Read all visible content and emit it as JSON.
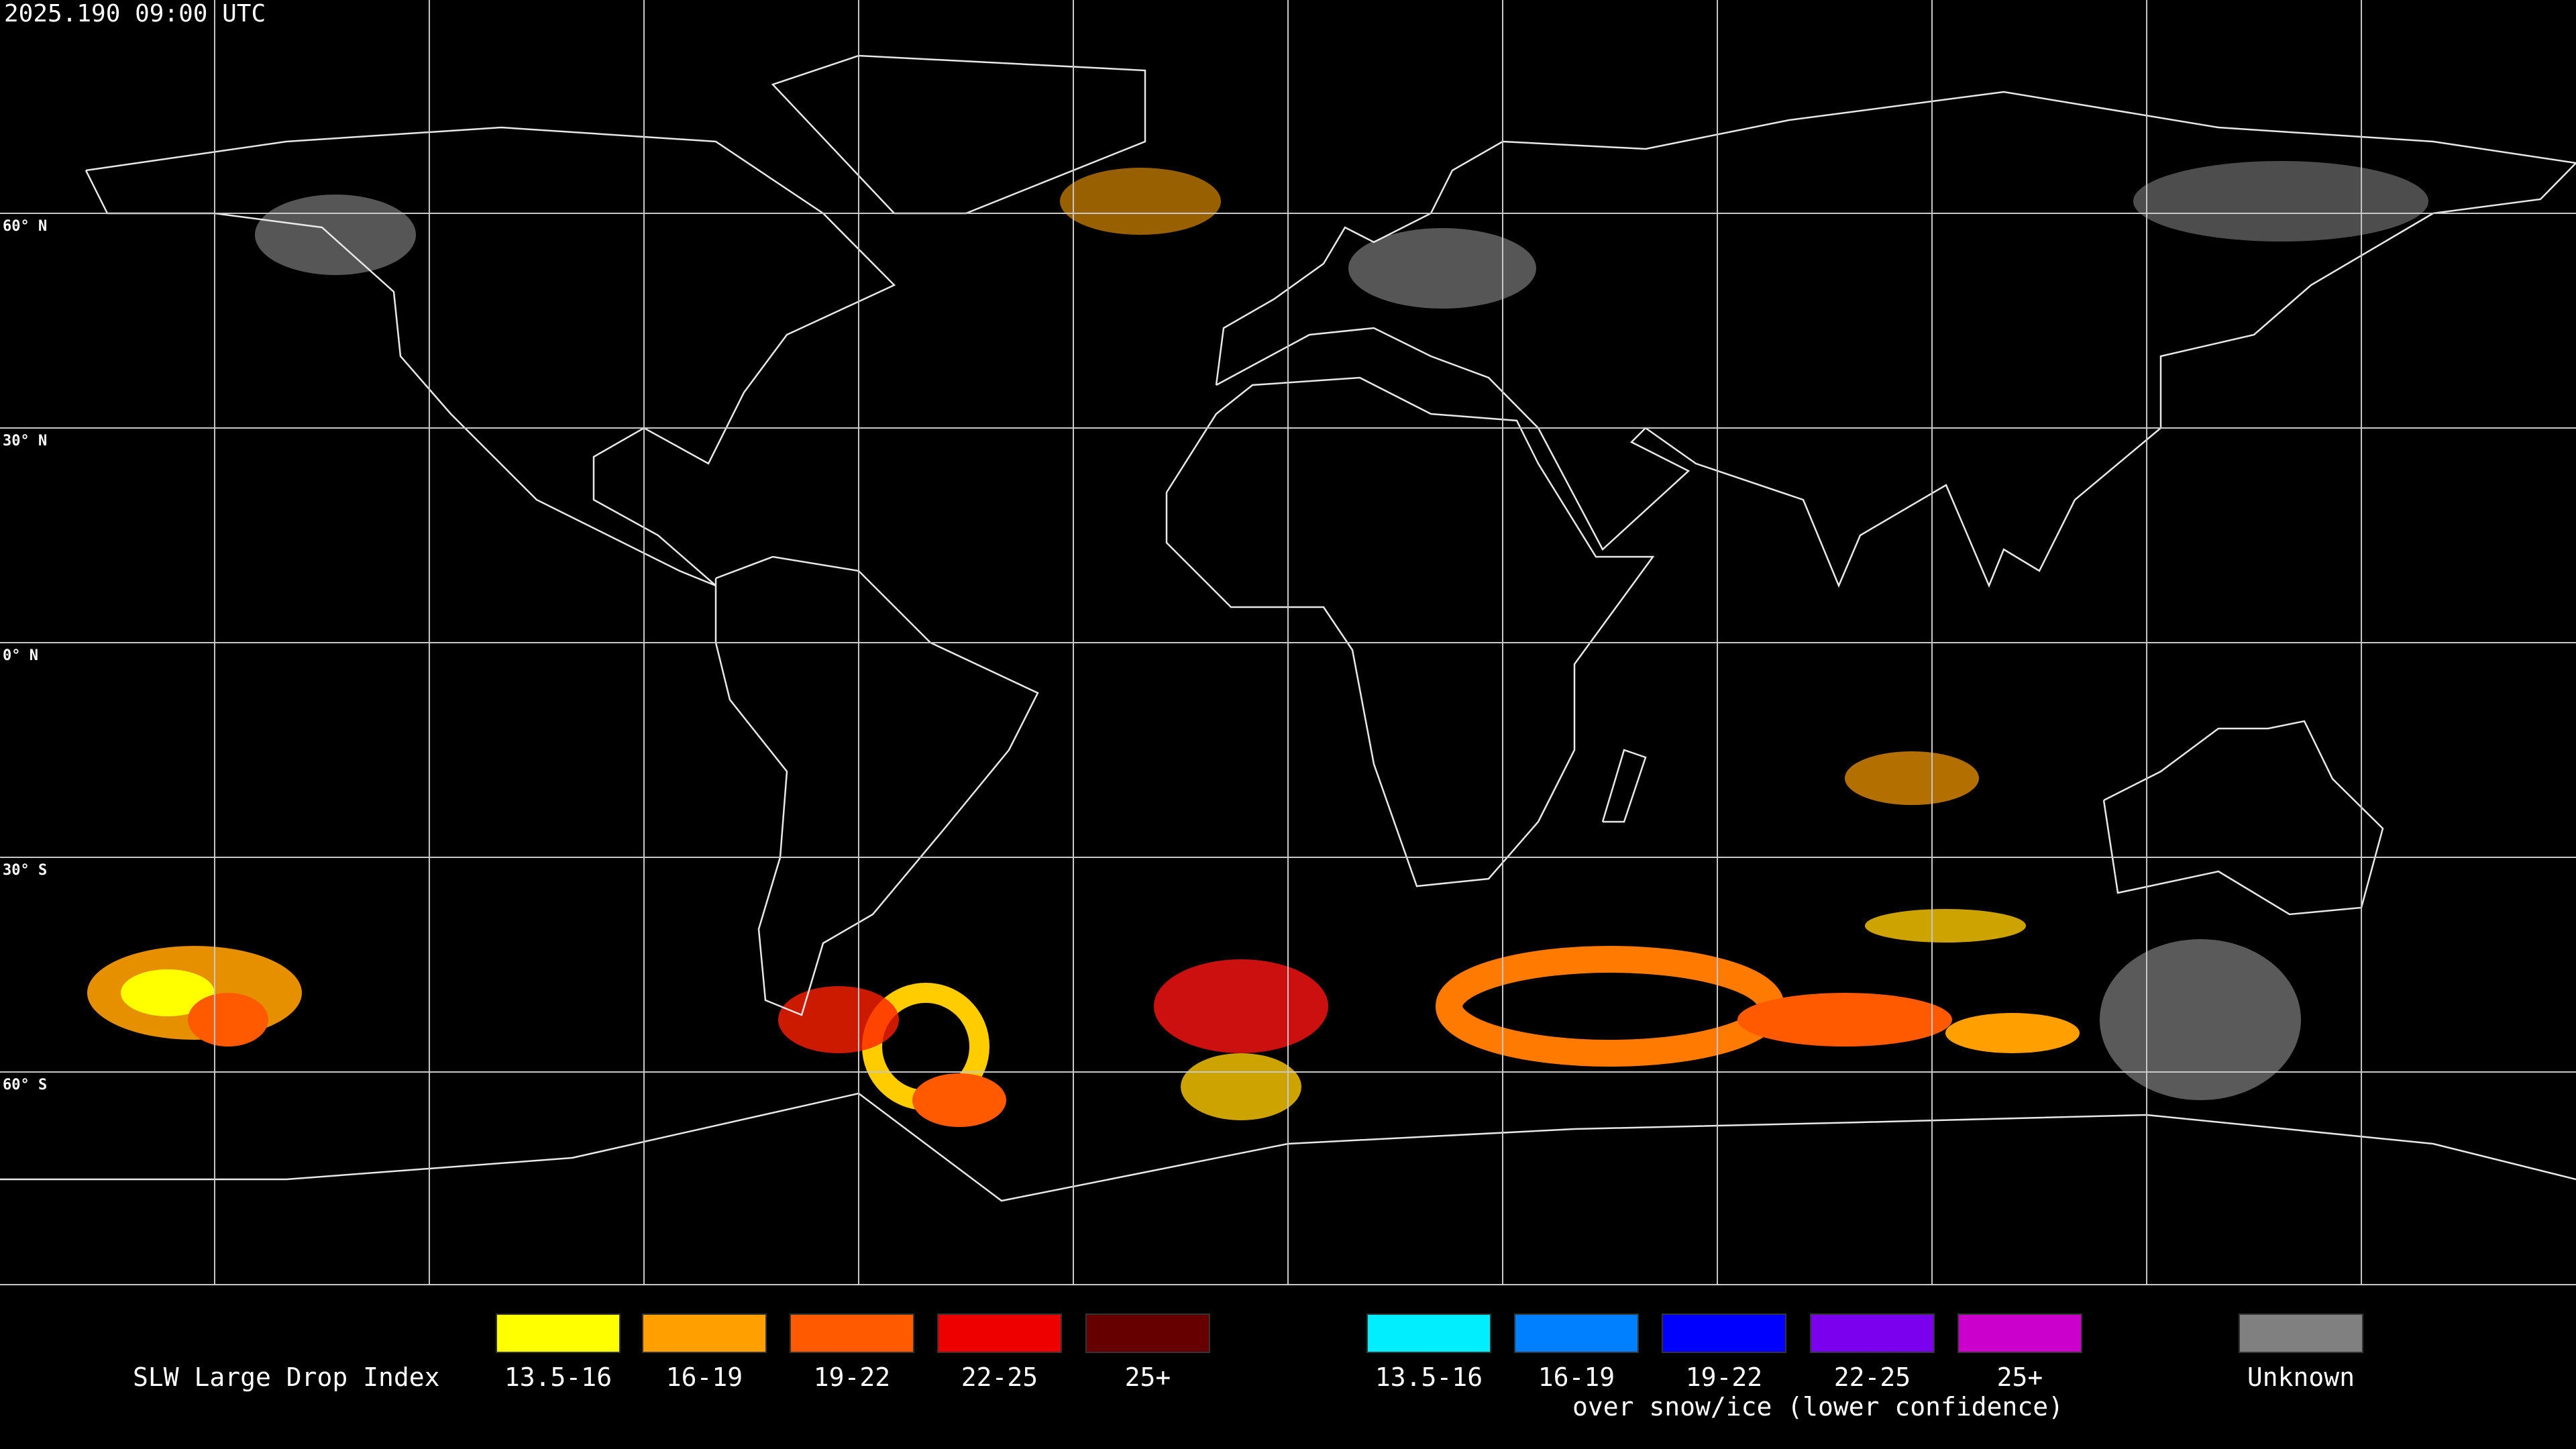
{
  "timestamp": "2025.190 09:00 UTC",
  "latitude_labels": [
    "60° N",
    "30° N",
    "0° N",
    "30° S",
    "60° S"
  ],
  "legend": {
    "title": "SLW Large Drop Index",
    "items": [
      {
        "label": "13.5-16",
        "color": "#ffff00"
      },
      {
        "label": "16-19",
        "color": "#ffa000"
      },
      {
        "label": "19-22",
        "color": "#ff5a00"
      },
      {
        "label": "22-25",
        "color": "#ee0000"
      },
      {
        "label": "25+",
        "color": "#660000"
      },
      {
        "label": "13.5-16",
        "color": "#00eeff"
      },
      {
        "label": "16-19",
        "color": "#0080ff"
      },
      {
        "label": "19-22",
        "color": "#0000ff"
      },
      {
        "label": "22-25",
        "color": "#7a00ee"
      },
      {
        "label": "25+",
        "color": "#cc00cc"
      },
      {
        "label": "Unknown",
        "color": "#808080"
      }
    ],
    "note": "over snow/ice (lower confidence)"
  }
}
